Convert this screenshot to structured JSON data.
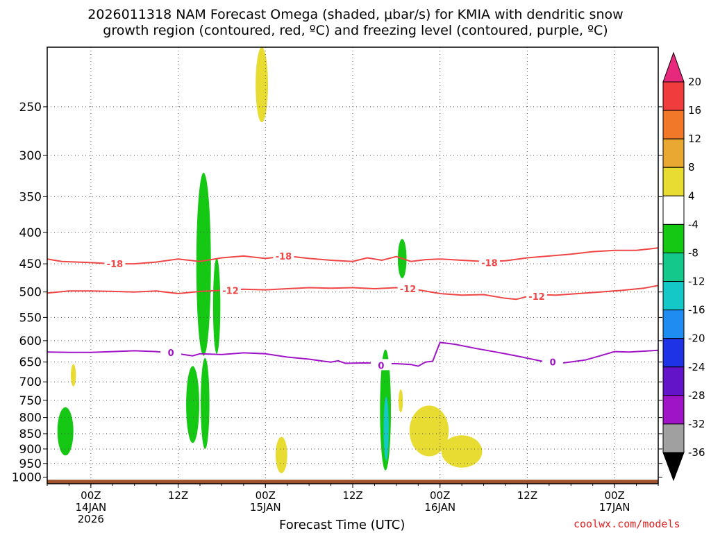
{
  "title_line1": "2026011318 NAM Forecast Omega (shaded, μbar/s) for KMIA with dendritic snow",
  "title_line2": "growth region (contoured, red, ºC) and freezing level (contoured, purple, ºC)",
  "xaxis_title": "Forecast Time (UTC)",
  "credit": "coolwx.com/models",
  "chart_data": {
    "type": "heatmap",
    "y_axis": {
      "scale": "log-pressure",
      "reversed": true,
      "ticks": [
        250,
        300,
        350,
        400,
        450,
        500,
        550,
        600,
        650,
        700,
        750,
        800,
        850,
        900,
        950,
        1000
      ],
      "range": [
        200,
        1025
      ]
    },
    "x_axis": {
      "range_hours": [
        -6,
        78
      ],
      "ticks": [
        {
          "hour": 0,
          "label": "00Z",
          "sub1": "14JAN",
          "sub2": "2026"
        },
        {
          "hour": 12,
          "label": "12Z",
          "sub1": "",
          "sub2": ""
        },
        {
          "hour": 24,
          "label": "00Z",
          "sub1": "15JAN",
          "sub2": ""
        },
        {
          "hour": 36,
          "label": "12Z",
          "sub1": "",
          "sub2": ""
        },
        {
          "hour": 48,
          "label": "00Z",
          "sub1": "16JAN",
          "sub2": ""
        },
        {
          "hour": 60,
          "label": "12Z",
          "sub1": "",
          "sub2": ""
        },
        {
          "hour": 72,
          "label": "00Z",
          "sub1": "17JAN",
          "sub2": ""
        }
      ],
      "grid": true
    },
    "colorbar": {
      "labels": [
        "20",
        "16",
        "12",
        "8",
        "4",
        "-4",
        "-8",
        "-12",
        "-16",
        "-20",
        "-24",
        "-28",
        "-32",
        "-36"
      ],
      "colors": [
        "#e8287c",
        "#f03c3c",
        "#f07828",
        "#e8a832",
        "#e8dc32",
        "#ffffff",
        "#14c814",
        "#14c88c",
        "#14c8c8",
        "#1e8cf0",
        "#1e32e6",
        "#6414c8",
        "#a014c8",
        "#a0a0a0",
        "#000000"
      ]
    },
    "contours": [
      {
        "name": "dendritic",
        "color": "#f04646",
        "level": -18,
        "points": [
          [
            -6,
            442
          ],
          [
            -4,
            446
          ],
          [
            0,
            448
          ],
          [
            3,
            450
          ],
          [
            6,
            450
          ],
          [
            9,
            447
          ],
          [
            12,
            442
          ],
          [
            15,
            446
          ],
          [
            18,
            440
          ],
          [
            21,
            437
          ],
          [
            24,
            441
          ],
          [
            27,
            437
          ],
          [
            30,
            441
          ],
          [
            33,
            444
          ],
          [
            36,
            446
          ],
          [
            38,
            440
          ],
          [
            40,
            444
          ],
          [
            42,
            438
          ],
          [
            44,
            446
          ],
          [
            46,
            443
          ],
          [
            48,
            442
          ],
          [
            51,
            444
          ],
          [
            54,
            446
          ],
          [
            57,
            445
          ],
          [
            60,
            440
          ],
          [
            63,
            437
          ],
          [
            66,
            434
          ],
          [
            69,
            430
          ],
          [
            72,
            428
          ],
          [
            75,
            428
          ],
          [
            78,
            424
          ]
        ],
        "labels": [
          {
            "hour": 3.3,
            "p": 450,
            "text": "-18"
          },
          {
            "hour": 26.5,
            "p": 437,
            "text": "-18"
          },
          {
            "hour": 54.8,
            "p": 448,
            "text": "-18"
          }
        ]
      },
      {
        "name": "dendritic",
        "color": "#f04646",
        "level": -12,
        "points": [
          [
            -6,
            502
          ],
          [
            -3,
            498
          ],
          [
            0,
            498
          ],
          [
            3,
            499
          ],
          [
            6,
            500
          ],
          [
            9,
            498
          ],
          [
            12,
            503
          ],
          [
            15,
            499
          ],
          [
            18,
            497
          ],
          [
            21,
            495
          ],
          [
            24,
            496
          ],
          [
            27,
            494
          ],
          [
            30,
            492
          ],
          [
            33,
            493
          ],
          [
            36,
            492
          ],
          [
            39,
            494
          ],
          [
            42,
            492
          ],
          [
            45,
            496
          ],
          [
            48,
            503
          ],
          [
            51,
            506
          ],
          [
            54,
            505
          ],
          [
            57,
            512
          ],
          [
            58.5,
            514
          ],
          [
            61,
            505
          ],
          [
            64,
            506
          ],
          [
            67,
            503
          ],
          [
            70,
            500
          ],
          [
            73,
            497
          ],
          [
            76,
            493
          ],
          [
            78,
            488
          ]
        ],
        "labels": [
          {
            "hour": 19.2,
            "p": 497,
            "text": "-12"
          },
          {
            "hour": 43.6,
            "p": 494,
            "text": "-12"
          },
          {
            "hour": 61.3,
            "p": 508,
            "text": "-12"
          }
        ]
      },
      {
        "name": "freezing",
        "color": "#a014c8",
        "level": 0,
        "points": [
          [
            -6,
            626
          ],
          [
            -3,
            627
          ],
          [
            0,
            627
          ],
          [
            3,
            625
          ],
          [
            6,
            623
          ],
          [
            9,
            625
          ],
          [
            12,
            630
          ],
          [
            14,
            635
          ],
          [
            15,
            630
          ],
          [
            18,
            632
          ],
          [
            21,
            628
          ],
          [
            24,
            630
          ],
          [
            27,
            638
          ],
          [
            30,
            643
          ],
          [
            32,
            648
          ],
          [
            33,
            650
          ],
          [
            34,
            647
          ],
          [
            35,
            653
          ],
          [
            38,
            652
          ],
          [
            40,
            654
          ],
          [
            42,
            654
          ],
          [
            44,
            656
          ],
          [
            45,
            660
          ],
          [
            46,
            650
          ],
          [
            47,
            648
          ],
          [
            48,
            604
          ],
          [
            50,
            608
          ],
          [
            53,
            618
          ],
          [
            56,
            627
          ],
          [
            59,
            637
          ],
          [
            62,
            648
          ],
          [
            65,
            652
          ],
          [
            68,
            645
          ],
          [
            70,
            635
          ],
          [
            72,
            625
          ],
          [
            74,
            626
          ],
          [
            78,
            622
          ]
        ],
        "labels": [
          {
            "hour": 11,
            "p": 627,
            "text": "0"
          },
          {
            "hour": 39.9,
            "p": 658,
            "text": "0"
          },
          {
            "hour": 63.5,
            "p": 650,
            "text": "0"
          }
        ]
      }
    ],
    "shaded": [
      {
        "level": "-8",
        "color": "#14c814",
        "hour": -3.5,
        "p_top": 770,
        "p_bottom": 922,
        "half_width_hours": 1.1
      },
      {
        "level": "4",
        "color": "#e8dc32",
        "hour": -2.4,
        "p_top": 655,
        "p_bottom": 712,
        "half_width_hours": 0.35
      },
      {
        "level": "4",
        "color": "#e8dc32",
        "hour": 23.5,
        "p_top": 200,
        "p_bottom": 265,
        "half_width_hours": 0.85
      },
      {
        "level": "-8",
        "color": "#14c814",
        "hour": 14,
        "p_top": 660,
        "p_bottom": 880,
        "half_width_hours": 0.9
      },
      {
        "level": "-8",
        "color": "#14c814",
        "hour": 15.5,
        "p_top": 320,
        "p_bottom": 635,
        "half_width_hours": 1.0
      },
      {
        "level": "-8",
        "color": "#14c814",
        "hour": 15.7,
        "p_top": 640,
        "p_bottom": 900,
        "half_width_hours": 0.6
      },
      {
        "level": "-8",
        "color": "#14c814",
        "hour": 17.3,
        "p_top": 440,
        "p_bottom": 630,
        "half_width_hours": 0.5
      },
      {
        "level": "4",
        "color": "#e8dc32",
        "hour": 26.2,
        "p_top": 860,
        "p_bottom": 985,
        "half_width_hours": 0.8
      },
      {
        "level": "-8",
        "color": "#14c814",
        "hour": 40.5,
        "p_top": 620,
        "p_bottom": 975,
        "half_width_hours": 0.75
      },
      {
        "level": "-12",
        "color": "#14c8c8",
        "hour": 40.6,
        "p_top": 740,
        "p_bottom": 940,
        "half_width_hours": 0.35
      },
      {
        "level": "4",
        "color": "#e8dc32",
        "hour": 42.6,
        "p_top": 720,
        "p_bottom": 785,
        "half_width_hours": 0.3
      },
      {
        "level": "-8",
        "color": "#14c814",
        "hour": 42.8,
        "p_top": 410,
        "p_bottom": 475,
        "half_width_hours": 0.6
      },
      {
        "level": "4",
        "color": "#e8dc32",
        "hour": 46.5,
        "p_top": 765,
        "p_bottom": 925,
        "half_width_hours": 2.7
      },
      {
        "level": "4",
        "color": "#e8dc32",
        "hour": 51,
        "p_top": 855,
        "p_bottom": 965,
        "half_width_hours": 2.8
      }
    ],
    "terrain": {
      "color": "#a0522d",
      "p_top": 1010
    }
  }
}
